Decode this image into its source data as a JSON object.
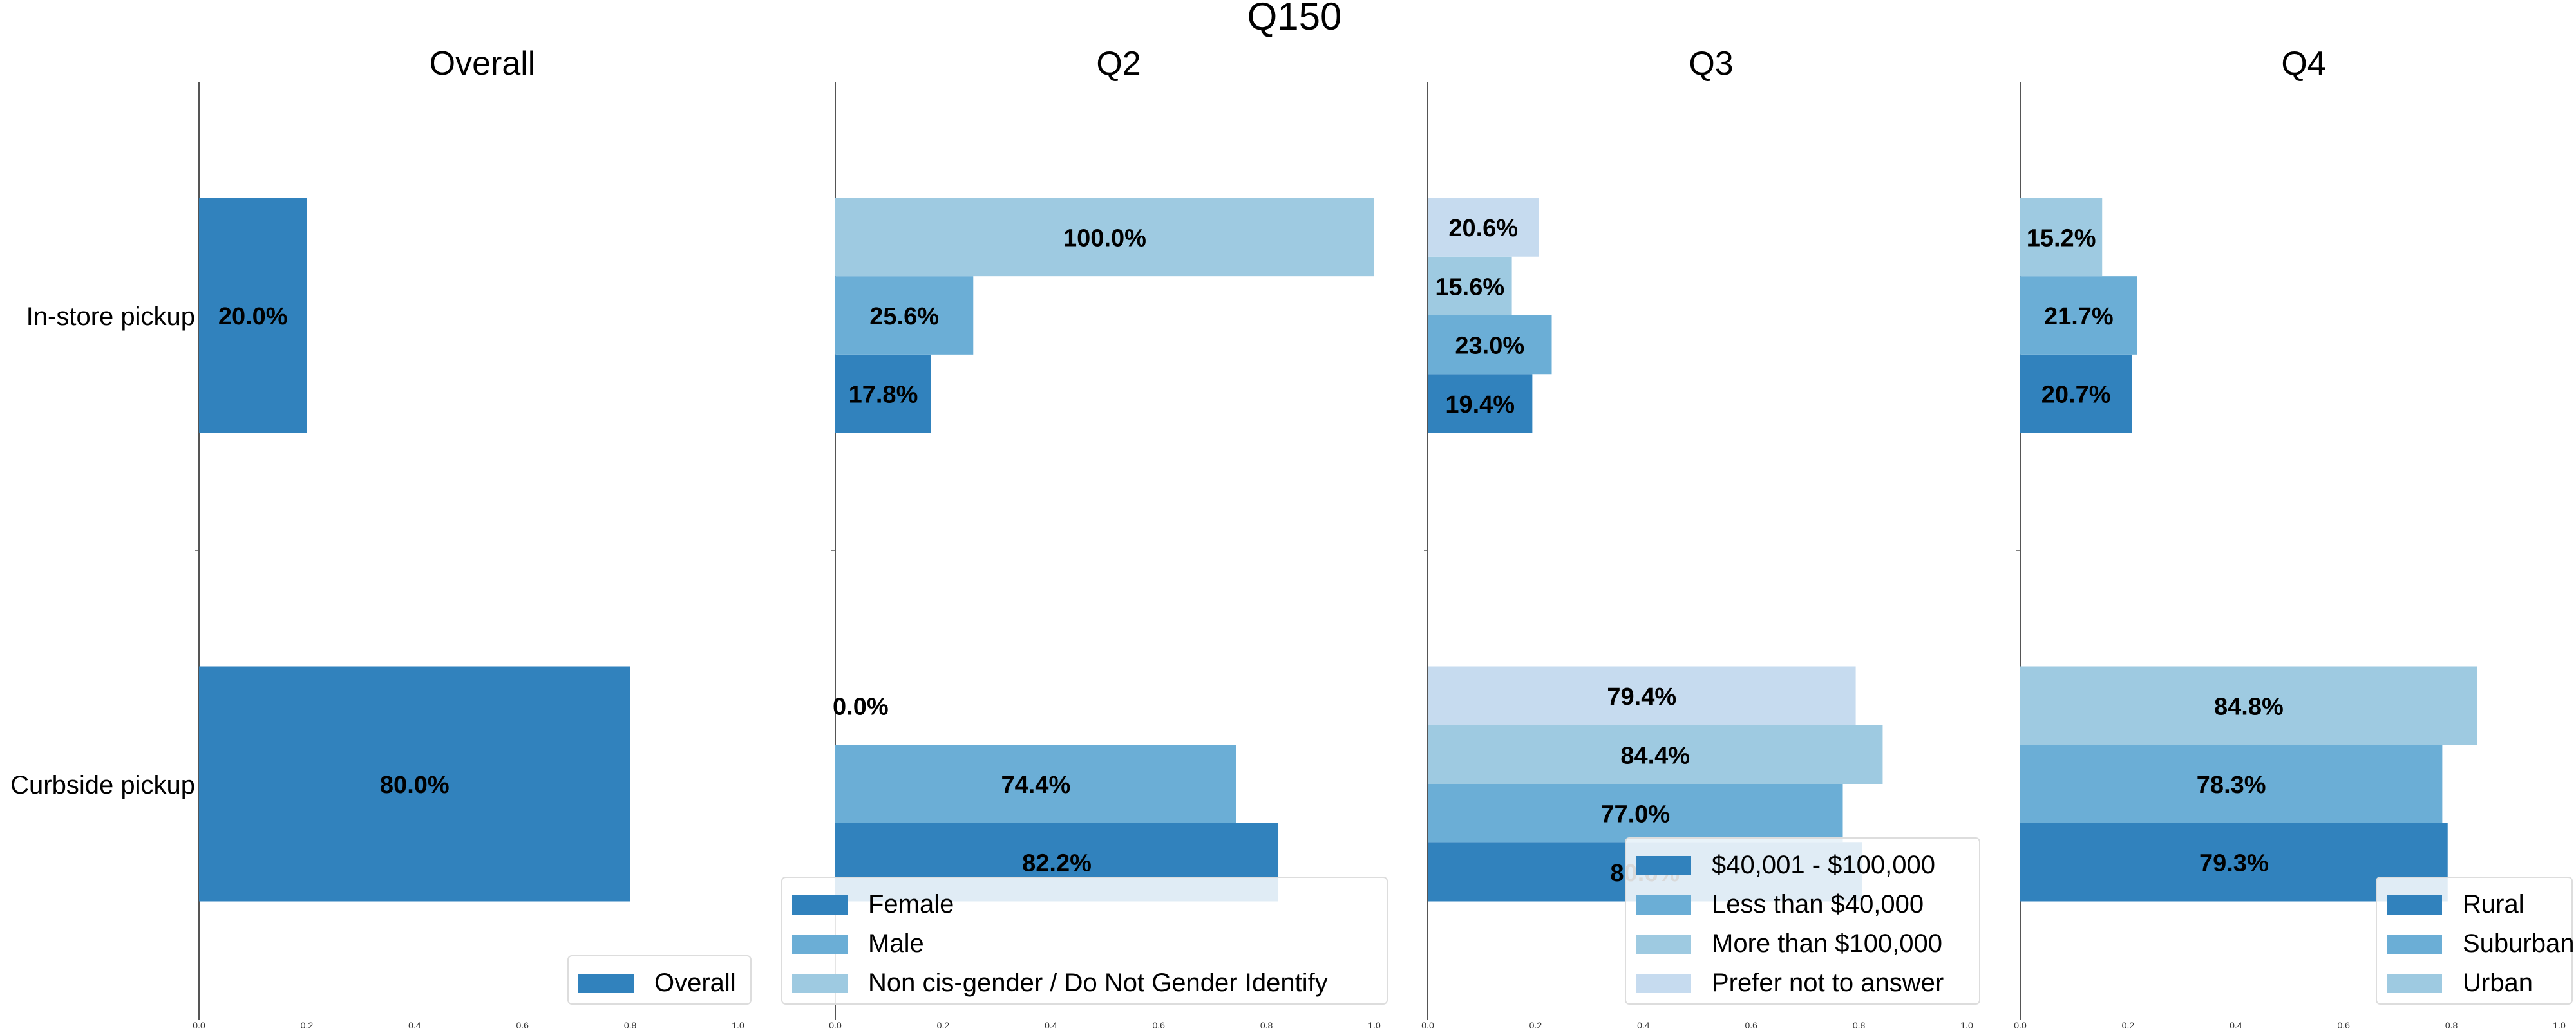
{
  "figure_title": "Q150",
  "colors": {
    "dark": "#3182bd",
    "mid": "#6baed6",
    "light": "#9ecae1",
    "lighter": "#c6dbef",
    "axis": "#555555",
    "text": "#000000",
    "legend_border": "#dddddd"
  },
  "chart_data": [
    {
      "type": "bar",
      "orientation": "horizontal",
      "title": "Overall",
      "categories": [
        "In-store pickup",
        "Curbside pickup"
      ],
      "xlim": [
        0,
        1
      ],
      "xticks": [
        "0.0",
        "0.2",
        "0.4",
        "0.6",
        "0.8",
        "1.0"
      ],
      "legend_position": "bottom-right",
      "series": [
        {
          "name": "Overall",
          "color": "#3182bd",
          "values": [
            0.2,
            0.8
          ],
          "labels": [
            "20.0%",
            "80.0%"
          ]
        }
      ]
    },
    {
      "type": "bar",
      "orientation": "horizontal",
      "title": "Q2",
      "categories": [
        "In-store pickup",
        "Curbside pickup"
      ],
      "xlim": [
        0,
        1
      ],
      "xticks": [
        "0.0",
        "0.2",
        "0.4",
        "0.6",
        "0.8",
        "1.0"
      ],
      "legend_position": "bottom-right",
      "series": [
        {
          "name": "Female",
          "color": "#3182bd",
          "values": [
            0.178,
            0.822
          ],
          "labels": [
            "17.8%",
            "82.2%"
          ]
        },
        {
          "name": "Male",
          "color": "#6baed6",
          "values": [
            0.256,
            0.744
          ],
          "labels": [
            "25.6%",
            "74.4%"
          ]
        },
        {
          "name": "Non cis-gender / Do Not Gender Identify",
          "color": "#9ecae1",
          "values": [
            1.0,
            0.0
          ],
          "labels": [
            "100.0%",
            "0.0%"
          ]
        }
      ]
    },
    {
      "type": "bar",
      "orientation": "horizontal",
      "title": "Q3",
      "categories": [
        "In-store pickup",
        "Curbside pickup"
      ],
      "xlim": [
        0,
        1
      ],
      "xticks": [
        "0.0",
        "0.2",
        "0.4",
        "0.6",
        "0.8",
        "1.0"
      ],
      "legend_position": "bottom-right",
      "series": [
        {
          "name": "$40,001 - $100,000",
          "color": "#3182bd",
          "values": [
            0.194,
            0.806
          ],
          "labels": [
            "19.4%",
            "80.6%"
          ]
        },
        {
          "name": "Less than $40,000",
          "color": "#6baed6",
          "values": [
            0.23,
            0.77
          ],
          "labels": [
            "23.0%",
            "77.0%"
          ]
        },
        {
          "name": "More than $100,000",
          "color": "#9ecae1",
          "values": [
            0.156,
            0.844
          ],
          "labels": [
            "15.6%",
            "84.4%"
          ]
        },
        {
          "name": "Prefer not to answer",
          "color": "#c6dbef",
          "values": [
            0.206,
            0.794
          ],
          "labels": [
            "20.6%",
            "79.4%"
          ]
        }
      ]
    },
    {
      "type": "bar",
      "orientation": "horizontal",
      "title": "Q4",
      "categories": [
        "In-store pickup",
        "Curbside pickup"
      ],
      "xlim": [
        0,
        1
      ],
      "xticks": [
        "0.0",
        "0.2",
        "0.4",
        "0.6",
        "0.8",
        "1.0"
      ],
      "legend_position": "bottom-right",
      "series": [
        {
          "name": "Rural",
          "color": "#3182bd",
          "values": [
            0.207,
            0.793
          ],
          "labels": [
            "20.7%",
            "79.3%"
          ]
        },
        {
          "name": "Suburban",
          "color": "#6baed6",
          "values": [
            0.217,
            0.783
          ],
          "labels": [
            "21.7%",
            "78.3%"
          ]
        },
        {
          "name": "Urban",
          "color": "#9ecae1",
          "values": [
            0.152,
            0.848
          ],
          "labels": [
            "15.2%",
            "84.8%"
          ]
        }
      ]
    }
  ]
}
